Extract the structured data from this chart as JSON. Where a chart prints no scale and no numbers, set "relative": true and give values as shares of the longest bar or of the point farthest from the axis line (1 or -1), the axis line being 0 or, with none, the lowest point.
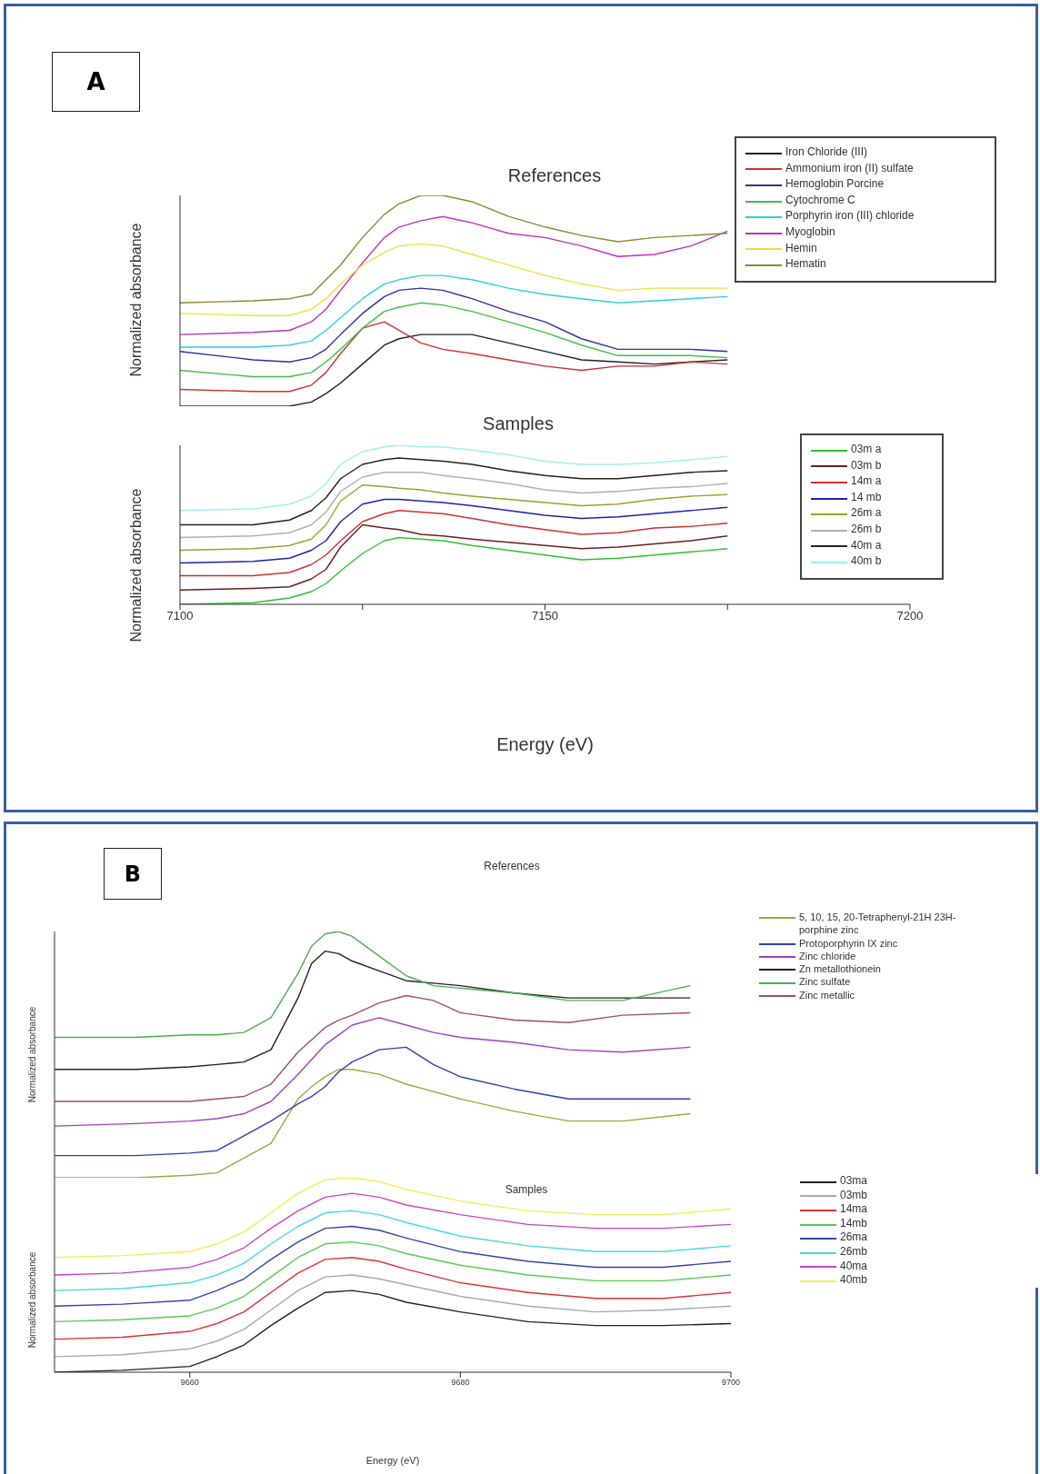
{
  "chart_data": [
    {
      "type": "line",
      "title": "References",
      "ylabel": "Normalized absorbance",
      "annotations": [
        "A"
      ],
      "relative": true,
      "tick_labels": false,
      "legend": "top right",
      "xlim": [
        7100,
        7200
      ],
      "x": [
        7100,
        7110,
        7115,
        7118,
        7120,
        7122,
        7125,
        7128,
        7130,
        7133,
        7136,
        7140,
        7145,
        7150,
        7155,
        7160,
        7165,
        7170,
        7175
      ],
      "series": [
        {
          "name": "Iron Chloride (III)",
          "color": "#222222",
          "values": [
            0,
            0,
            0,
            0.02,
            0.06,
            0.11,
            0.2,
            0.29,
            0.32,
            0.34,
            0.34,
            0.34,
            0.3,
            0.26,
            0.22,
            0.21,
            0.2,
            0.21,
            0.22
          ]
        },
        {
          "name": "Ammonium iron (II) sulfate",
          "color": "#d03030",
          "values": [
            0.08,
            0.07,
            0.07,
            0.1,
            0.16,
            0.25,
            0.37,
            0.4,
            0.36,
            0.3,
            0.27,
            0.25,
            0.22,
            0.19,
            0.17,
            0.19,
            0.19,
            0.21,
            0.2
          ]
        },
        {
          "name": "Hemoglobin Porcine",
          "color": "#3030a0",
          "values": [
            0.26,
            0.22,
            0.21,
            0.23,
            0.27,
            0.34,
            0.44,
            0.52,
            0.55,
            0.56,
            0.55,
            0.51,
            0.45,
            0.4,
            0.32,
            0.27,
            0.27,
            0.27,
            0.26
          ]
        },
        {
          "name": "Cytochrome C",
          "color": "#40c040",
          "values": [
            0.17,
            0.14,
            0.14,
            0.16,
            0.21,
            0.27,
            0.37,
            0.45,
            0.47,
            0.49,
            0.48,
            0.45,
            0.4,
            0.35,
            0.29,
            0.24,
            0.24,
            0.24,
            0.23
          ]
        },
        {
          "name": "Porphyrin iron (III) chloride",
          "color": "#30d0e0",
          "values": [
            0.28,
            0.28,
            0.29,
            0.31,
            0.36,
            0.42,
            0.51,
            0.58,
            0.6,
            0.62,
            0.62,
            0.6,
            0.56,
            0.53,
            0.51,
            0.49,
            0.5,
            0.51,
            0.52
          ]
        },
        {
          "name": "Myoglobin",
          "color": "#c030c0",
          "values": [
            0.34,
            0.35,
            0.36,
            0.4,
            0.46,
            0.55,
            0.68,
            0.8,
            0.85,
            0.88,
            0.9,
            0.87,
            0.82,
            0.8,
            0.76,
            0.71,
            0.72,
            0.76,
            0.83
          ]
        },
        {
          "name": "Hemin",
          "color": "#f0e040",
          "values": [
            0.44,
            0.43,
            0.43,
            0.46,
            0.51,
            0.58,
            0.67,
            0.73,
            0.76,
            0.77,
            0.76,
            0.72,
            0.67,
            0.62,
            0.58,
            0.55,
            0.56,
            0.56,
            0.56
          ]
        },
        {
          "name": "Hematin",
          "color": "#8a8a30",
          "values": [
            0.49,
            0.5,
            0.51,
            0.53,
            0.6,
            0.67,
            0.8,
            0.91,
            0.96,
            1,
            1,
            0.97,
            0.9,
            0.85,
            0.81,
            0.78,
            0.8,
            0.81,
            0.82
          ]
        }
      ]
    },
    {
      "type": "line",
      "title": "Samples",
      "xlabel": "Energy (eV)",
      "ylabel": "Normalized absorbance",
      "relative": true,
      "tick_labels": "x",
      "legend": "right",
      "xlim": [
        7100,
        7200
      ],
      "xticks": [
        7100,
        {
          "value": 7125,
          "label": null
        },
        7150,
        {
          "value": 7175,
          "label": null
        },
        7200
      ],
      "x": [
        7100,
        7110,
        7115,
        7118,
        7120,
        7122,
        7125,
        7128,
        7130,
        7133,
        7136,
        7140,
        7145,
        7150,
        7155,
        7160,
        7165,
        7170,
        7175
      ],
      "series": [
        {
          "name": "03m a",
          "color": "#30c030",
          "values": [
            0,
            0.01,
            0.04,
            0.08,
            0.13,
            0.21,
            0.32,
            0.4,
            0.42,
            0.41,
            0.4,
            0.37,
            0.34,
            0.31,
            0.28,
            0.29,
            0.31,
            0.33,
            0.35
          ]
        },
        {
          "name": "03m b",
          "color": "#6b1f1f",
          "values": [
            0.09,
            0.1,
            0.11,
            0.16,
            0.22,
            0.36,
            0.5,
            0.48,
            0.47,
            0.44,
            0.43,
            0.41,
            0.39,
            0.37,
            0.35,
            0.36,
            0.38,
            0.4,
            0.43
          ]
        },
        {
          "name": "14m a",
          "color": "#d03030",
          "values": [
            0.18,
            0.18,
            0.2,
            0.25,
            0.31,
            0.4,
            0.52,
            0.57,
            0.59,
            0.58,
            0.57,
            0.54,
            0.5,
            0.47,
            0.44,
            0.45,
            0.48,
            0.49,
            0.51
          ]
        },
        {
          "name": "14 mb",
          "color": "#2020b0",
          "values": [
            0.26,
            0.27,
            0.29,
            0.34,
            0.4,
            0.52,
            0.63,
            0.66,
            0.66,
            0.65,
            0.64,
            0.62,
            0.59,
            0.56,
            0.54,
            0.55,
            0.57,
            0.59,
            0.61
          ]
        },
        {
          "name": "26m a",
          "color": "#a0a030",
          "values": [
            0.34,
            0.35,
            0.37,
            0.41,
            0.5,
            0.65,
            0.75,
            0.74,
            0.73,
            0.72,
            0.7,
            0.68,
            0.66,
            0.64,
            0.62,
            0.63,
            0.66,
            0.68,
            0.69
          ]
        },
        {
          "name": "26m b",
          "color": "#b0b0b0",
          "values": [
            0.42,
            0.43,
            0.45,
            0.5,
            0.58,
            0.71,
            0.8,
            0.83,
            0.83,
            0.83,
            0.81,
            0.79,
            0.76,
            0.72,
            0.7,
            0.71,
            0.73,
            0.74,
            0.76
          ]
        },
        {
          "name": "40m a",
          "color": "#222222",
          "values": [
            0.5,
            0.5,
            0.53,
            0.59,
            0.67,
            0.79,
            0.88,
            0.91,
            0.92,
            0.91,
            0.9,
            0.88,
            0.84,
            0.81,
            0.79,
            0.79,
            0.81,
            0.83,
            0.84
          ]
        },
        {
          "name": "40m b",
          "color": "#a0f0f0",
          "values": [
            0.59,
            0.6,
            0.63,
            0.68,
            0.76,
            0.88,
            0.96,
            0.99,
            1,
            0.99,
            0.99,
            0.97,
            0.94,
            0.9,
            0.88,
            0.88,
            0.89,
            0.91,
            0.93
          ]
        }
      ]
    },
    {
      "type": "line",
      "title": "References",
      "ylabel": "Normalized absorbance",
      "annotations": [
        "B"
      ],
      "relative": true,
      "tick_labels": false,
      "legend": "right",
      "xlim": [
        9650,
        9700
      ],
      "x": [
        9650,
        9656,
        9660,
        9662,
        9664,
        9666,
        9668,
        9669,
        9670,
        9671,
        9672,
        9674,
        9676,
        9678,
        9680,
        9684,
        9688,
        9692,
        9697
      ],
      "series": [
        {
          "name": "5, 10, 15, 20-Tetraphenyl-21H 23H-porphine zinc",
          "color": "#9aaa40",
          "values": [
            0,
            0,
            0.01,
            0.02,
            0.08,
            0.14,
            0.32,
            0.37,
            0.41,
            0.44,
            0.44,
            0.42,
            0.38,
            0.35,
            0.32,
            0.27,
            0.23,
            0.23,
            0.26
          ]
        },
        {
          "name": "Protoporphyrin IX zinc",
          "color": "#3040b0",
          "values": [
            0.09,
            0.09,
            0.1,
            0.11,
            0.17,
            0.23,
            0.3,
            0.33,
            0.37,
            0.43,
            0.47,
            0.52,
            0.53,
            0.46,
            0.41,
            0.36,
            0.32,
            0.32,
            0.32
          ]
        },
        {
          "name": "Zinc chloride",
          "color": "#a040c0",
          "values": [
            0.21,
            0.22,
            0.23,
            0.24,
            0.26,
            0.31,
            0.42,
            0.48,
            0.54,
            0.58,
            0.62,
            0.65,
            0.62,
            0.59,
            0.57,
            0.55,
            0.52,
            0.51,
            0.53
          ]
        },
        {
          "name": "Zn metallothionein",
          "color": "#222222",
          "values": [
            0.44,
            0.44,
            0.45,
            0.46,
            0.47,
            0.52,
            0.73,
            0.87,
            0.92,
            0.91,
            0.88,
            0.84,
            0.8,
            0.79,
            0.78,
            0.75,
            0.73,
            0.73,
            0.73
          ]
        },
        {
          "name": "Zinc sulfate",
          "color": "#4caf50",
          "values": [
            0.57,
            0.57,
            0.58,
            0.58,
            0.59,
            0.65,
            0.83,
            0.94,
            0.99,
            1,
            0.98,
            0.9,
            0.82,
            0.78,
            0.77,
            0.75,
            0.72,
            0.72,
            0.78
          ]
        },
        {
          "name": "Zinc metallic",
          "color": "#a0506a",
          "values": [
            0.31,
            0.31,
            0.31,
            0.32,
            0.33,
            0.38,
            0.51,
            0.56,
            0.61,
            0.64,
            0.66,
            0.71,
            0.74,
            0.72,
            0.67,
            0.64,
            0.63,
            0.66,
            0.67
          ]
        }
      ]
    },
    {
      "type": "line",
      "title": "Samples",
      "xlabel": "Energy (eV)",
      "ylabel": "Normalized absorbance",
      "relative": true,
      "tick_labels": "x",
      "legend": "right",
      "xlim": [
        9650,
        9700
      ],
      "xticks": [
        9660,
        9680,
        9700
      ],
      "x": [
        9650,
        9655,
        9660,
        9662,
        9664,
        9666,
        9668,
        9670,
        9672,
        9674,
        9676,
        9680,
        9685,
        9690,
        9695,
        9700
      ],
      "series": [
        {
          "name": "03ma",
          "color": "#222222",
          "values": [
            0,
            0.01,
            0.03,
            0.08,
            0.14,
            0.24,
            0.33,
            0.41,
            0.42,
            0.4,
            0.36,
            0.31,
            0.26,
            0.24,
            0.24,
            0.25
          ]
        },
        {
          "name": "03mb",
          "color": "#aaaaaa",
          "values": [
            0.08,
            0.09,
            0.12,
            0.16,
            0.22,
            0.32,
            0.42,
            0.49,
            0.5,
            0.48,
            0.45,
            0.39,
            0.34,
            0.31,
            0.32,
            0.34
          ]
        },
        {
          "name": "14ma",
          "color": "#dd3333",
          "values": [
            0.17,
            0.18,
            0.21,
            0.25,
            0.31,
            0.41,
            0.51,
            0.58,
            0.59,
            0.57,
            0.53,
            0.46,
            0.41,
            0.38,
            0.38,
            0.41
          ]
        },
        {
          "name": "14mb",
          "color": "#55cc55",
          "values": [
            0.26,
            0.27,
            0.29,
            0.33,
            0.39,
            0.49,
            0.59,
            0.66,
            0.67,
            0.65,
            0.61,
            0.55,
            0.5,
            0.47,
            0.47,
            0.5
          ]
        },
        {
          "name": "26ma",
          "color": "#3344aa",
          "values": [
            0.34,
            0.35,
            0.37,
            0.42,
            0.48,
            0.58,
            0.67,
            0.74,
            0.75,
            0.73,
            0.69,
            0.62,
            0.57,
            0.54,
            0.54,
            0.57
          ]
        },
        {
          "name": "26mb",
          "color": "#44dddd",
          "values": [
            0.42,
            0.43,
            0.46,
            0.5,
            0.56,
            0.66,
            0.75,
            0.82,
            0.83,
            0.81,
            0.77,
            0.7,
            0.65,
            0.62,
            0.62,
            0.65
          ]
        },
        {
          "name": "40ma",
          "color": "#cc44cc",
          "values": [
            0.5,
            0.51,
            0.54,
            0.58,
            0.64,
            0.74,
            0.83,
            0.9,
            0.92,
            0.9,
            0.86,
            0.81,
            0.76,
            0.74,
            0.74,
            0.76
          ]
        },
        {
          "name": "40mb",
          "color": "#eeee55",
          "values": [
            0.59,
            0.6,
            0.62,
            0.66,
            0.72,
            0.82,
            0.92,
            0.99,
            1,
            0.98,
            0.94,
            0.88,
            0.83,
            0.81,
            0.81,
            0.84
          ]
        }
      ]
    }
  ]
}
